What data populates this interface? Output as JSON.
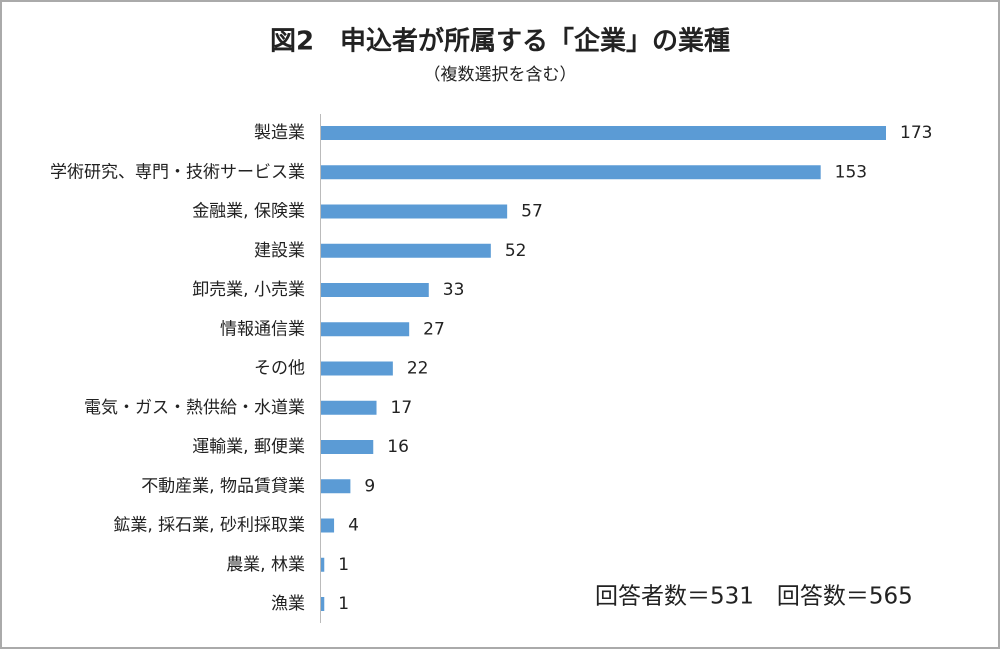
{
  "chart_data": {
    "type": "barh",
    "title": "図2　申込者が所属する「企業」の業種",
    "subtitle": "（複数選択を含む）",
    "annotation": "回答者数＝531　回答数＝565",
    "color": "#5b9bd5",
    "categories": [
      "製造業",
      "学術研究、専門・技術サービス業",
      "金融業, 保険業",
      "建設業",
      "卸売業, 小売業",
      "情報通信業",
      "その他",
      "電気・ガス・熱供給・水道業",
      "運輸業, 郵便業",
      "不動産業, 物品賃貸業",
      "鉱業, 採石業, 砂利採取業",
      "農業, 林業",
      "漁業"
    ],
    "values": [
      173,
      153,
      57,
      52,
      33,
      27,
      22,
      17,
      16,
      9,
      4,
      1,
      1
    ]
  }
}
